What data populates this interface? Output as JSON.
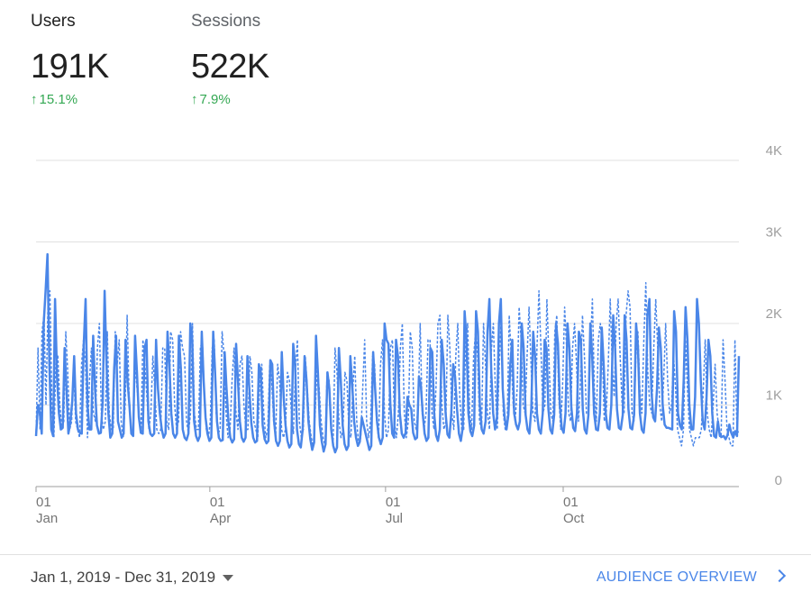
{
  "metrics": {
    "users": {
      "label": "Users",
      "value": "191K",
      "change": "15.1%",
      "direction": "up"
    },
    "sessions": {
      "label": "Sessions",
      "value": "522K",
      "change": "7.9%",
      "direction": "up"
    }
  },
  "footer": {
    "date_range": "Jan 1, 2019 - Dec 31, 2019",
    "audience_link": "AUDIENCE OVERVIEW"
  },
  "colors": {
    "series": "#4a86e8",
    "positive": "#34a853",
    "link": "#4a86e8"
  },
  "chart_data": {
    "type": "line",
    "y_ticks": [
      "0",
      "1K",
      "2K",
      "3K",
      "4K"
    ],
    "ylim": [
      0,
      4000
    ],
    "y_axis_position": "right",
    "x_ticks": [
      {
        "day": "01",
        "month": "Jan",
        "date": "2019-01-01"
      },
      {
        "day": "01",
        "month": "Apr",
        "date": "2019-04-01"
      },
      {
        "day": "01",
        "month": "Jul",
        "date": "2019-07-01"
      },
      {
        "day": "01",
        "month": "Oct",
        "date": "2019-10-01"
      }
    ],
    "x_start": "2019-01-01",
    "x_end": "2019-12-31",
    "grid": true,
    "series": [
      {
        "style": "solid",
        "values": [
          620,
          1000,
          900,
          650,
          2000,
          2400,
          2850,
          1500,
          700,
          620,
          2300,
          1350,
          900,
          700,
          720,
          1700,
          1200,
          650,
          780,
          1050,
          1600,
          900,
          700,
          660,
          650,
          1700,
          2300,
          1000,
          700,
          700,
          1850,
          1200,
          750,
          650,
          660,
          1050,
          2400,
          1500,
          900,
          600,
          650,
          1450,
          1850,
          800,
          700,
          600,
          650,
          1800,
          1300,
          1000,
          650,
          620,
          1850,
          1400,
          850,
          660,
          650,
          1700,
          1800,
          800,
          650,
          620,
          650,
          1800,
          1200,
          900,
          700,
          600,
          650,
          1900,
          1500,
          900,
          650,
          600,
          650,
          1850,
          1450,
          700,
          600,
          570,
          650,
          2000,
          1800,
          800,
          620,
          560,
          620,
          1900,
          1300,
          850,
          650,
          560,
          600,
          1900,
          1400,
          800,
          600,
          560,
          570,
          1650,
          1200,
          800,
          600,
          540,
          580,
          1750,
          1300,
          800,
          600,
          550,
          600,
          1600,
          1200,
          780,
          600,
          540,
          560,
          1500,
          1400,
          750,
          580,
          530,
          560,
          1550,
          1500,
          800,
          560,
          500,
          560,
          1650,
          1100,
          750,
          560,
          480,
          520,
          1750,
          1500,
          700,
          520,
          480,
          700,
          1600,
          1300,
          800,
          580,
          450,
          540,
          1850,
          1400,
          750,
          550,
          430,
          520,
          1400,
          1200,
          700,
          500,
          420,
          480,
          1700,
          1300,
          750,
          520,
          450,
          500,
          1600,
          1250,
          800,
          600,
          500,
          550,
          850,
          750,
          650,
          550,
          450,
          500,
          1650,
          1200,
          800,
          600,
          520,
          600,
          2000,
          1800,
          1750,
          1000,
          650,
          600,
          1800,
          1600,
          900,
          650,
          600,
          660,
          1100,
          1000,
          950,
          660,
          580,
          600,
          1350,
          1250,
          900,
          650,
          560,
          600,
          1700,
          1650,
          900,
          630,
          560,
          700,
          1800,
          1500,
          900,
          640,
          600,
          900,
          1500,
          1350,
          950,
          650,
          560,
          720,
          2150,
          1800,
          900,
          680,
          620,
          750,
          2150,
          1900,
          1000,
          700,
          650,
          800,
          1900,
          2300,
          1400,
          900,
          700,
          850,
          2000,
          2300,
          1200,
          850,
          700,
          880,
          1500,
          1800,
          900,
          760,
          700,
          800,
          2000,
          1700,
          880,
          700,
          650,
          950,
          1900,
          1600,
          900,
          700,
          650,
          900,
          1800,
          1700,
          950,
          700,
          650,
          880,
          2000,
          1750,
          1000,
          720,
          660,
          900,
          2000,
          1700,
          980,
          720,
          680,
          900,
          1900,
          1800,
          950,
          700,
          650,
          880,
          2000,
          1600,
          900,
          700,
          690,
          900,
          1950,
          1500,
          920,
          720,
          700,
          1000,
          2100,
          1700,
          950,
          720,
          700,
          880,
          2100,
          1800,
          950,
          720,
          700,
          880,
          2000,
          1700,
          900,
          700,
          660,
          900,
          2100,
          2300,
          1200,
          850,
          800,
          1200,
          1950,
          1700,
          1000,
          760,
          720,
          720,
          710,
          700,
          2150,
          1900,
          900,
          750,
          700,
          1300,
          2200,
          1800,
          1000,
          700,
          700,
          1100,
          2300,
          2000,
          1300,
          800,
          700,
          1100,
          1800,
          1600,
          900,
          620,
          600,
          800,
          620,
          610,
          620,
          580,
          630,
          760,
          660,
          600,
          680,
          620,
          1600
        ]
      },
      {
        "style": "dashed",
        "values": [
          620,
          1700,
          700,
          1900,
          2100,
          1000,
          2200,
          2400,
          1000,
          600,
          1500,
          1600,
          1000,
          700,
          800,
          1900,
          1400,
          700,
          800,
          1500,
          800,
          700,
          600,
          1500,
          1800,
          1500,
          600,
          1300,
          1700,
          900,
          800,
          1700,
          2000,
          900,
          700,
          800,
          1900,
          900,
          700,
          700,
          1900,
          1500,
          1800,
          800,
          600,
          1000,
          2100,
          1100,
          700,
          700,
          1500,
          1200,
          900,
          700,
          1800,
          1500,
          1100,
          700,
          900,
          1600,
          1200,
          700,
          650,
          700,
          1700,
          1700,
          800,
          700,
          1900,
          1800,
          1000,
          700,
          800,
          1900,
          1700,
          1600,
          800,
          650,
          900,
          2000,
          900,
          700,
          700,
          1700,
          1800,
          1100,
          700,
          600,
          800,
          1700,
          1800,
          900,
          650,
          700,
          1900,
          1600,
          900,
          600,
          700,
          1300,
          1700,
          900,
          700,
          1500,
          1600,
          1000,
          700,
          700,
          1600,
          1400,
          800,
          700,
          600,
          1300,
          1500,
          900,
          600,
          700,
          1500,
          1300,
          800,
          600,
          1500,
          1300,
          700,
          600,
          700,
          1400,
          1300,
          900,
          650,
          1400,
          1800,
          800,
          600,
          700,
          1600,
          1200,
          800,
          600,
          500,
          900,
          1500,
          1200,
          800,
          600,
          500,
          1400,
          1300,
          700,
          500,
          1700,
          1400,
          800,
          600,
          700,
          1400,
          1300,
          700,
          600,
          1200,
          1600,
          800,
          500,
          600,
          1200,
          1800,
          800,
          600,
          800,
          1600,
          1500,
          800,
          600,
          1500,
          1800,
          900,
          600,
          700,
          1700,
          1800,
          800,
          600,
          900,
          1700,
          2000,
          900,
          600,
          800,
          1900,
          1700,
          800,
          700,
          1000,
          2000,
          900,
          700,
          900,
          1800,
          1800,
          900,
          700,
          1200,
          2000,
          2100,
          1000,
          700,
          800,
          2100,
          1700,
          900,
          700,
          1600,
          2000,
          1100,
          700,
          700,
          1800,
          2000,
          900,
          700,
          1600,
          1900,
          1600,
          800,
          700,
          2000,
          1500,
          900,
          700,
          1700,
          2000,
          1200,
          700,
          1500,
          2100,
          900,
          700,
          800,
          2100,
          1600,
          1000,
          800,
          1200,
          2200,
          1800,
          1000,
          900,
          1600,
          2200,
          1500,
          900,
          800,
          1700,
          2400,
          1700,
          900,
          1000,
          2300,
          1600,
          900,
          800,
          1900,
          2100,
          1100,
          700,
          1300,
          2200,
          1700,
          900,
          800,
          1700,
          2000,
          1500,
          800,
          1300,
          2100,
          1600,
          900,
          900,
          1700,
          2300,
          1200,
          800,
          1800,
          2000,
          1700,
          800,
          900,
          1500,
          2300,
          1500,
          1100,
          2000,
          2300,
          1600,
          1000,
          900,
          2100,
          2400,
          2200,
          900,
          800,
          1600,
          1900,
          1200,
          900,
          1800,
          2500,
          1400,
          1000,
          900,
          1700,
          2300,
          1700,
          1000,
          800,
          1300,
          2000,
          1300,
          900,
          1000,
          1600,
          1200,
          700,
          600,
          500,
          700,
          1800,
          1200,
          700,
          600,
          500,
          600,
          600,
          600,
          700,
          1200,
          1800,
          900,
          700,
          600,
          1000,
          1500,
          900,
          700,
          600,
          1800,
          1300,
          700,
          600,
          500,
          500,
          1800,
          700,
          650
        ]
      }
    ]
  }
}
